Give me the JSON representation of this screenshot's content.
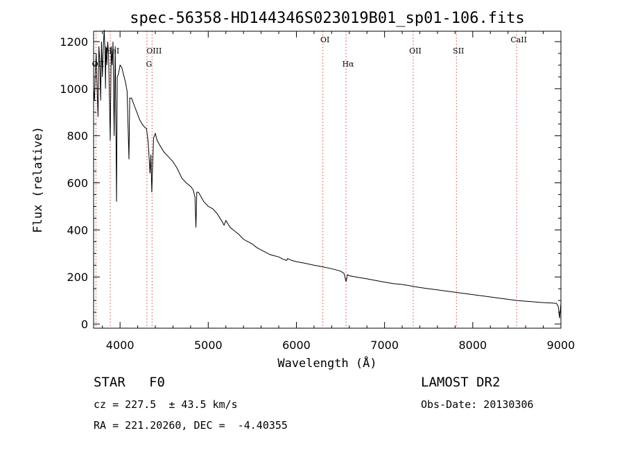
{
  "chart_data": {
    "type": "line",
    "title": "spec-56358-HD144346S023019B01_sp01-106.fits",
    "xlabel": "Wavelength (Å)",
    "ylabel": "Flux (relative)",
    "xlim": [
      3700,
      9000
    ],
    "ylim": [
      0,
      1250
    ],
    "xticks": [
      4000,
      5000,
      6000,
      7000,
      8000,
      9000
    ],
    "yticks": [
      0,
      200,
      400,
      600,
      800,
      1000,
      1200
    ],
    "grid": false,
    "line_color": "#000000",
    "marker_color": "#d04040",
    "spectral_lines": [
      {
        "label": "OII",
        "x": 3727,
        "row": 2
      },
      {
        "label": "HeI",
        "x": 3889,
        "row": 1
      },
      {
        "label": "OIII",
        "x": 4363,
        "row": 1
      },
      {
        "label": "G",
        "x": 4305,
        "row": 2
      },
      {
        "label": "OI",
        "x": 6300,
        "row": 0
      },
      {
        "label": "Hα",
        "x": 6563,
        "row": 2
      },
      {
        "label": "OII",
        "x": 7325,
        "row": 1
      },
      {
        "label": "SII",
        "x": 7815,
        "row": 1
      },
      {
        "label": "CaII",
        "x": 8498,
        "row": 0
      }
    ],
    "series": [
      {
        "x": [
          3700,
          3710,
          3720,
          3730,
          3740,
          3750,
          3760,
          3770,
          3780,
          3790,
          3800,
          3810,
          3820,
          3830,
          3835,
          3840,
          3850,
          3860,
          3870,
          3880,
          3889,
          3900,
          3910,
          3920,
          3933,
          3945,
          3960,
          3968,
          3980,
          4000,
          4020,
          4040,
          4060,
          4080,
          4101,
          4110,
          4130,
          4150,
          4170,
          4200,
          4220,
          4250,
          4270,
          4300,
          4320,
          4340,
          4350,
          4360,
          4380,
          4400,
          4420,
          4450,
          4500,
          4550,
          4600,
          4650,
          4700,
          4750,
          4800,
          4830,
          4850,
          4861,
          4870,
          4890,
          4920,
          4950,
          5000,
          5050,
          5100,
          5150,
          5180,
          5200,
          5250,
          5300,
          5350,
          5400,
          5450,
          5500,
          5550,
          5600,
          5650,
          5700,
          5750,
          5800,
          5850,
          5890,
          5900,
          5950,
          6000,
          6100,
          6200,
          6300,
          6400,
          6500,
          6540,
          6563,
          6580,
          6600,
          6700,
          6800,
          6900,
          7000,
          7100,
          7200,
          7300,
          7400,
          7500,
          7600,
          7700,
          7800,
          7900,
          8000,
          8100,
          8200,
          8300,
          8400,
          8500,
          8600,
          8700,
          8800,
          8900,
          8950,
          8970,
          8985,
          9000
        ],
        "values": [
          1000,
          950,
          1080,
          1150,
          1000,
          880,
          1180,
          1120,
          950,
          1200,
          1050,
          1180,
          1250,
          1150,
          1000,
          1180,
          1100,
          1200,
          1150,
          950,
          780,
          1180,
          1100,
          1200,
          800,
          1180,
          520,
          1050,
          1060,
          1100,
          1090,
          1060,
          1030,
          990,
          700,
          960,
          960,
          940,
          920,
          890,
          870,
          850,
          840,
          830,
          770,
          640,
          720,
          560,
          790,
          810,
          780,
          760,
          730,
          710,
          690,
          660,
          620,
          600,
          585,
          570,
          540,
          410,
          560,
          560,
          540,
          520,
          500,
          490,
          470,
          440,
          420,
          440,
          410,
          395,
          380,
          360,
          350,
          340,
          325,
          315,
          305,
          295,
          290,
          285,
          275,
          270,
          278,
          270,
          265,
          258,
          250,
          243,
          235,
          225,
          215,
          180,
          210,
          205,
          198,
          192,
          185,
          178,
          172,
          168,
          162,
          155,
          150,
          145,
          140,
          135,
          130,
          125,
          120,
          115,
          110,
          105,
          100,
          97,
          94,
          91,
          89,
          88,
          75,
          25,
          88
        ]
      }
    ],
    "annotations": {
      "object_type": "STAR",
      "subclass": "F0",
      "survey": "LAMOST DR2",
      "cz": "cz = 227.5  ± 43.5 km/s",
      "obs_date": "Obs-Date: 20130306",
      "coords": "RA = 221.20260, DEC =  -4.40355"
    }
  }
}
